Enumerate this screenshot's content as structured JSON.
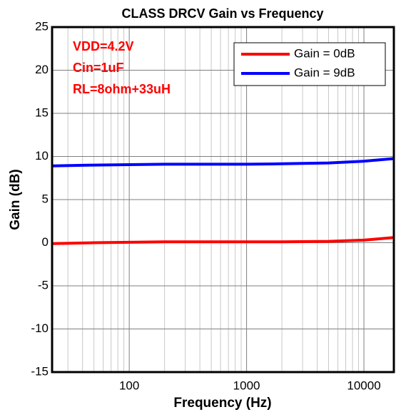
{
  "chart_data": {
    "type": "line",
    "title": "CLASS DRCV Gain vs Frequency",
    "xlabel": "Frequency (Hz)",
    "ylabel": "Gain (dB)",
    "log_x": true,
    "grid": true,
    "minor_grid": true,
    "legend": "upper right",
    "annotations": [
      "VDD=4.2V",
      "Cin=1uF",
      "RL=8ohm+33uH"
    ],
    "annotation_color": "#ff0000",
    "x": [
      22,
      50,
      100,
      200,
      500,
      1000,
      2000,
      5000,
      10000,
      18000
    ],
    "series": [
      {
        "name": "Gain = 0dB",
        "color": "#ff0000",
        "values": [
          -0.1,
          0,
          0.05,
          0.1,
          0.1,
          0.1,
          0.1,
          0.15,
          0.3,
          0.6
        ]
      },
      {
        "name": "Gain = 9dB",
        "color": "#0000ff",
        "values": [
          8.9,
          9.0,
          9.05,
          9.1,
          9.1,
          9.1,
          9.15,
          9.25,
          9.45,
          9.75
        ]
      }
    ],
    "xlim": [
      22,
      18000
    ],
    "xticks": [
      100,
      1000,
      10000
    ],
    "ylim": [
      -15,
      25
    ],
    "yticks": [
      -15,
      -10,
      -5,
      0,
      5,
      10,
      15,
      20,
      25
    ]
  }
}
